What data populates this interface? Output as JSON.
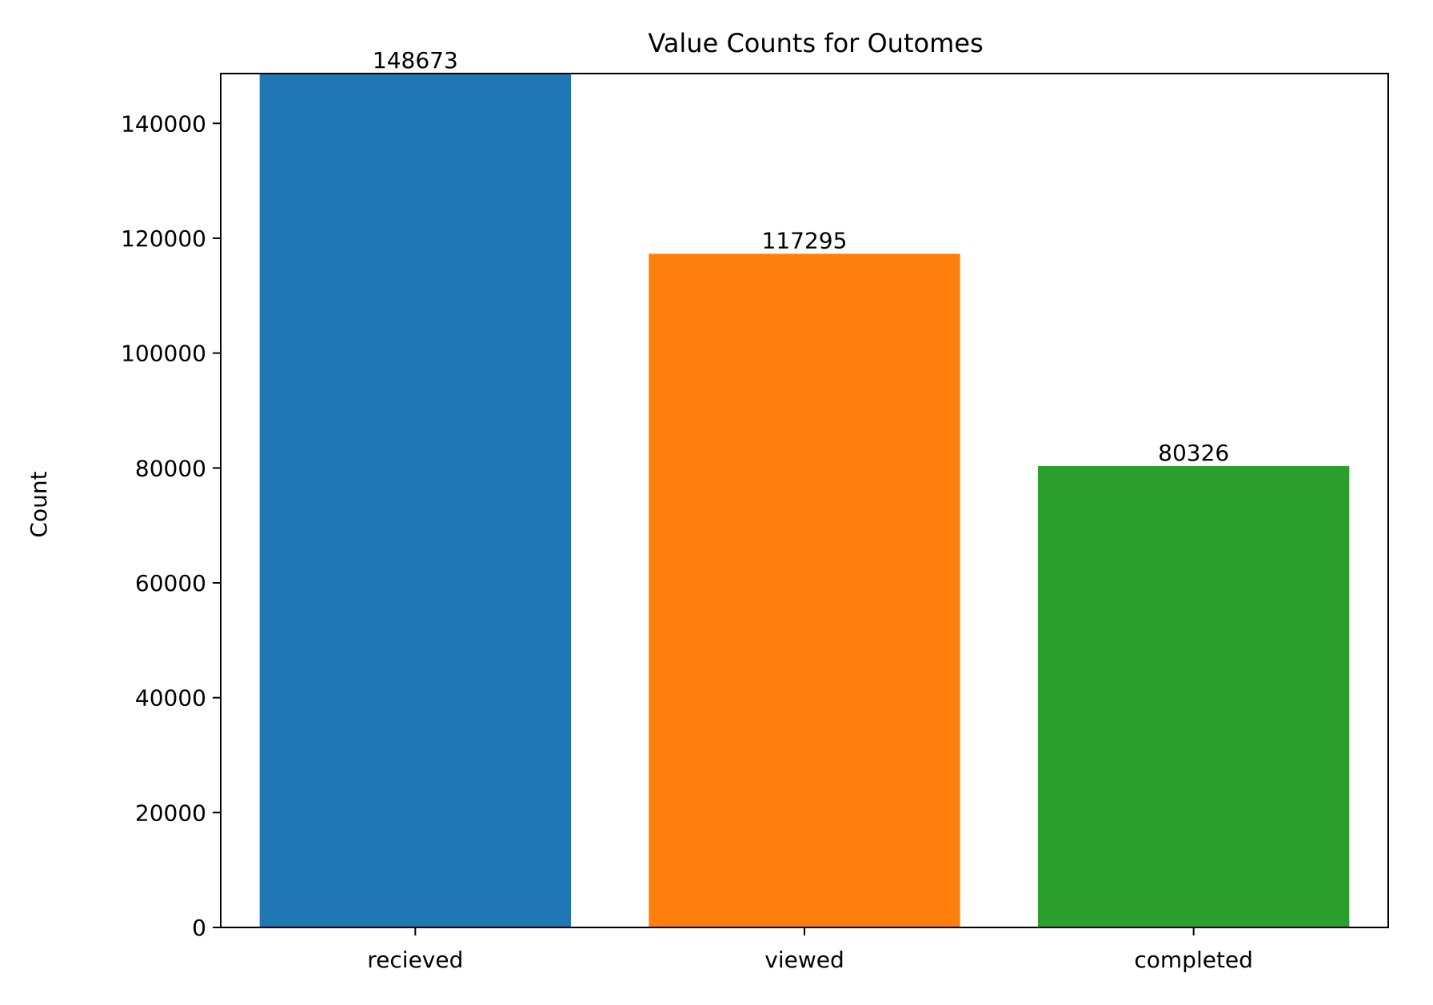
{
  "chart_data": {
    "type": "bar",
    "title": "Value Counts for Outomes",
    "xlabel": "",
    "ylabel": "Count",
    "categories": [
      "recieved",
      "viewed",
      "completed"
    ],
    "values": [
      148673,
      117295,
      80326
    ],
    "value_labels": [
      "148673",
      "117295",
      "80326"
    ],
    "colors": [
      "#1f77b4",
      "#ff7f0e",
      "#2ca02c"
    ],
    "ylim": [
      0,
      148673
    ],
    "yticks": [
      0,
      20000,
      40000,
      60000,
      80000,
      100000,
      120000,
      140000
    ],
    "ytick_labels": [
      "0",
      "20000",
      "40000",
      "60000",
      "80000",
      "100000",
      "120000",
      "140000"
    ],
    "grid": false,
    "legend": "none"
  }
}
